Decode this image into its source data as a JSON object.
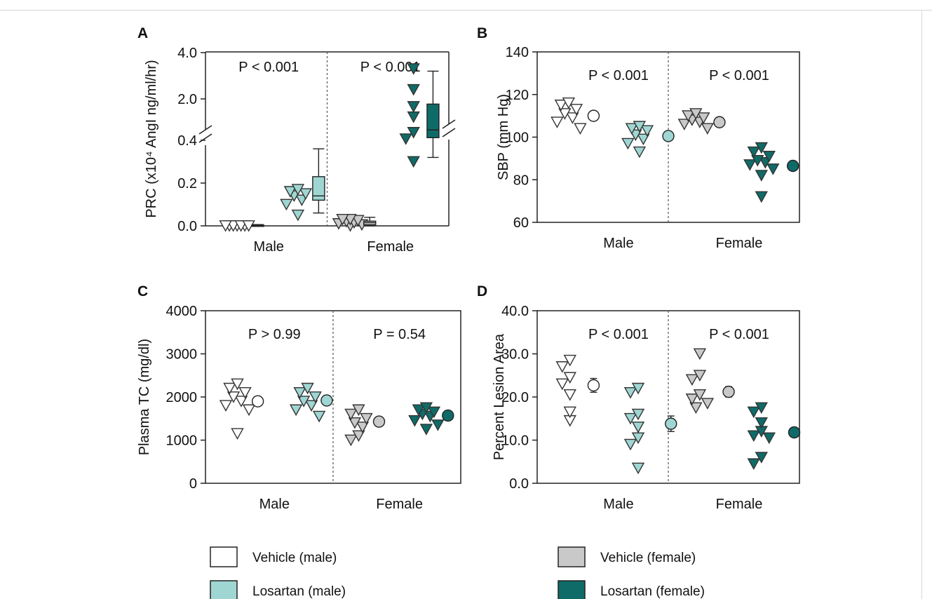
{
  "colors": {
    "vehicle_male": "#ffffff",
    "losartan_male": "#9fd6d3",
    "vehicle_female": "#c9c9c9",
    "losartan_female": "#0f6b68",
    "outline": "#333333"
  },
  "legend": [
    {
      "label": "Vehicle (male)",
      "group": "vehicle_male"
    },
    {
      "label": "Vehicle (female)",
      "group": "vehicle_female"
    },
    {
      "label": "Losartan (male)",
      "group": "losartan_male"
    },
    {
      "label": "Losartan (female)",
      "group": "losartan_female"
    }
  ],
  "chart_data": [
    {
      "panel": "A",
      "type": "scatter",
      "ylabel": "PRC (x10⁴ AngI ng/ml/hr)",
      "broken_axis": true,
      "lower_ylim": [
        0,
        0.4
      ],
      "upper_ylim": [
        0.4,
        4.0
      ],
      "yticks": [
        "0.0",
        "0.2",
        "0.4",
        "2.0",
        "4.0"
      ],
      "categories": [
        "Male",
        "Female"
      ],
      "annotations": [
        "P < 0.001",
        "P < 0.001"
      ],
      "series": [
        {
          "group": "vehicle_male",
          "values": [
            0.0,
            0.0,
            0.0,
            0.0,
            0.0,
            0.0,
            0.0
          ],
          "summary": {
            "type": "box",
            "min": 0.0,
            "q1": 0.0,
            "median": 0.0,
            "q3": 0.004,
            "max": 0.006
          }
        },
        {
          "group": "losartan_male",
          "values": [
            0.05,
            0.1,
            0.12,
            0.14,
            0.15,
            0.16,
            0.17
          ],
          "summary": {
            "type": "box",
            "min": 0.06,
            "q1": 0.12,
            "median": 0.14,
            "q3": 0.23,
            "max": 0.36
          }
        },
        {
          "group": "vehicle_female",
          "values": [
            0.0,
            0.005,
            0.01,
            0.015,
            0.02,
            0.025,
            0.03,
            0.03
          ],
          "summary": {
            "type": "box",
            "min": 0.0,
            "q1": 0.005,
            "median": 0.015,
            "q3": 0.022,
            "max": 0.04
          }
        },
        {
          "group": "losartan_female",
          "values": [
            0.3,
            0.45,
            0.7,
            1.3,
            1.7,
            2.4,
            3.3
          ],
          "summary": {
            "type": "box",
            "min": 0.32,
            "q1": 0.5,
            "median": 0.8,
            "q3": 1.8,
            "max": 3.2
          }
        }
      ]
    },
    {
      "panel": "B",
      "type": "scatter",
      "ylabel": "SBP (mm Hg)",
      "ylim": [
        60,
        140
      ],
      "yticks": [
        60,
        80,
        100,
        120,
        140
      ],
      "categories": [
        "Male",
        "Female"
      ],
      "annotations": [
        "P < 0.001",
        "P < 0.001"
      ],
      "series": [
        {
          "group": "vehicle_male",
          "values": [
            104,
            107,
            109,
            111,
            113,
            115,
            116
          ],
          "summary": {
            "type": "mean",
            "mean": 110
          }
        },
        {
          "group": "losartan_male",
          "values": [
            93,
            97,
            99,
            101,
            103,
            104,
            105
          ],
          "summary": {
            "type": "mean",
            "mean": 100.5
          }
        },
        {
          "group": "vehicle_female",
          "values": [
            104,
            106,
            107,
            108,
            109,
            110,
            111
          ],
          "summary": {
            "type": "mean",
            "mean": 107
          }
        },
        {
          "group": "losartan_female",
          "values": [
            72,
            82,
            85,
            87,
            88,
            89,
            91,
            93,
            95
          ],
          "summary": {
            "type": "mean",
            "mean": 86.5
          }
        }
      ]
    },
    {
      "panel": "C",
      "type": "scatter",
      "ylabel": "Plasma TC (mg/dl)",
      "ylim": [
        0,
        4000
      ],
      "yticks": [
        0,
        1000,
        2000,
        3000,
        4000
      ],
      "categories": [
        "Male",
        "Female"
      ],
      "annotations": [
        "P > 0.99",
        "P = 0.54"
      ],
      "series": [
        {
          "group": "vehicle_male",
          "values": [
            1150,
            1700,
            1800,
            1900,
            2000,
            2100,
            2200,
            2300
          ],
          "summary": {
            "type": "mean",
            "mean": 1900
          }
        },
        {
          "group": "losartan_male",
          "values": [
            1550,
            1700,
            1800,
            1900,
            2000,
            2100,
            2200
          ],
          "summary": {
            "type": "mean",
            "mean": 1920
          }
        },
        {
          "group": "vehicle_female",
          "values": [
            1000,
            1100,
            1300,
            1400,
            1500,
            1600,
            1700
          ],
          "summary": {
            "type": "mean",
            "mean": 1430
          }
        },
        {
          "group": "losartan_female",
          "values": [
            1250,
            1350,
            1450,
            1550,
            1600,
            1650,
            1700,
            1750
          ],
          "summary": {
            "type": "mean",
            "mean": 1570
          }
        }
      ]
    },
    {
      "panel": "D",
      "type": "scatter",
      "ylabel": "Percent Lesion Area",
      "ylim": [
        0,
        40
      ],
      "yticks": [
        "0.0",
        "10.0",
        "20.0",
        "30.0",
        "40.0"
      ],
      "categories": [
        "Male",
        "Female"
      ],
      "annotations": [
        "P < 0.001",
        "P < 0.001"
      ],
      "series": [
        {
          "group": "vehicle_male",
          "values": [
            14.5,
            16.5,
            20.5,
            23,
            24.5,
            27,
            28.5
          ],
          "summary": {
            "type": "mean_sem",
            "mean": 22.7,
            "sem": 1.6
          }
        },
        {
          "group": "losartan_male",
          "values": [
            3.5,
            9,
            10.5,
            13,
            15,
            16,
            21,
            22
          ],
          "summary": {
            "type": "mean_sem",
            "mean": 13.8,
            "sem": 1.8
          }
        },
        {
          "group": "vehicle_female",
          "values": [
            17.5,
            18.5,
            19.5,
            20.5,
            24,
            25,
            30
          ],
          "summary": {
            "type": "mean_sem",
            "mean": 21.2,
            "sem": 1.2
          }
        },
        {
          "group": "losartan_female",
          "values": [
            4.5,
            6,
            10.5,
            11,
            12,
            14,
            16.5,
            17.5
          ],
          "summary": {
            "type": "mean_sem",
            "mean": 11.8,
            "sem": 1.0
          }
        }
      ]
    }
  ]
}
